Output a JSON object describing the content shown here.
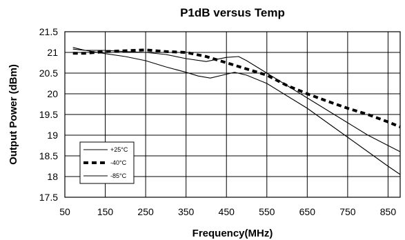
{
  "chart_data": {
    "type": "line",
    "title": "P1dB versus Temp",
    "xlabel": "Frequency(MHz)",
    "ylabel": "Output Power (dBm)",
    "xlim": [
      50,
      880
    ],
    "ylim": [
      17.5,
      21.5
    ],
    "xticks": [
      50,
      150,
      250,
      350,
      450,
      550,
      650,
      750,
      850
    ],
    "yticks": [
      17.5,
      18,
      18.5,
      19,
      19.5,
      20,
      20.5,
      21,
      21.5
    ],
    "xtick_labels": [
      "50",
      "150",
      "250",
      "350",
      "450",
      "550",
      "650",
      "750",
      "850"
    ],
    "ytick_labels": [
      "17.5",
      "18",
      "18.5",
      "19",
      "19.5",
      "20",
      "20.5",
      "21",
      "21.5"
    ],
    "grid": true,
    "legend_position": "bottom-left",
    "series": [
      {
        "name": "+25°C",
        "style": "solid-thin",
        "color": "#000000",
        "x": [
          70,
          100,
          150,
          200,
          250,
          300,
          350,
          400,
          450,
          480,
          500,
          550,
          600,
          650,
          700,
          750,
          800,
          850,
          880
        ],
        "y": [
          21.08,
          21.05,
          21.05,
          21.02,
          21.0,
          20.95,
          20.85,
          20.78,
          20.88,
          20.9,
          20.8,
          20.5,
          20.2,
          19.9,
          19.6,
          19.3,
          19.0,
          18.75,
          18.6
        ]
      },
      {
        "name": "-40°C",
        "style": "dashed-thick",
        "color": "#000000",
        "x": [
          70,
          100,
          150,
          200,
          250,
          300,
          350,
          400,
          450,
          500,
          550,
          600,
          650,
          700,
          750,
          800,
          850,
          880
        ],
        "y": [
          20.98,
          20.98,
          21.02,
          21.04,
          21.06,
          21.02,
          21.0,
          20.9,
          20.75,
          20.6,
          20.45,
          20.2,
          20.0,
          19.82,
          19.65,
          19.5,
          19.32,
          19.2
        ]
      },
      {
        "name": "-85°C",
        "style": "solid-thin",
        "color": "#000000",
        "x": [
          70,
          100,
          150,
          200,
          250,
          300,
          350,
          380,
          410,
          440,
          470,
          500,
          550,
          600,
          650,
          700,
          750,
          800,
          850,
          880
        ],
        "y": [
          21.12,
          21.05,
          20.97,
          20.9,
          20.8,
          20.65,
          20.52,
          20.43,
          20.38,
          20.45,
          20.52,
          20.45,
          20.25,
          19.95,
          19.65,
          19.3,
          18.95,
          18.6,
          18.25,
          18.05
        ]
      }
    ]
  }
}
